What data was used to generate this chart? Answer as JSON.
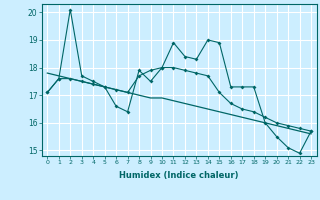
{
  "xlabel": "Humidex (Indice chaleur)",
  "bg_color": "#cceeff",
  "grid_color": "#ffffff",
  "line_color": "#006666",
  "xlim": [
    -0.5,
    23.5
  ],
  "ylim": [
    14.8,
    20.3
  ],
  "xticks": [
    0,
    1,
    2,
    3,
    4,
    5,
    6,
    7,
    8,
    9,
    10,
    11,
    12,
    13,
    14,
    15,
    16,
    17,
    18,
    19,
    20,
    21,
    22,
    23
  ],
  "yticks": [
    15,
    16,
    17,
    18,
    19,
    20
  ],
  "series1": [
    17.1,
    17.6,
    20.1,
    17.7,
    17.5,
    17.3,
    16.6,
    16.4,
    17.9,
    17.5,
    18.0,
    18.9,
    18.4,
    18.3,
    19.0,
    18.9,
    17.3,
    17.3,
    17.3,
    16.0,
    15.5,
    15.1,
    14.9,
    15.7
  ],
  "series2": [
    17.8,
    17.7,
    17.6,
    17.5,
    17.4,
    17.3,
    17.2,
    17.1,
    17.0,
    16.9,
    16.9,
    16.8,
    16.7,
    16.6,
    16.5,
    16.4,
    16.3,
    16.2,
    16.1,
    16.0,
    15.9,
    15.8,
    15.7,
    15.6
  ],
  "series3": [
    17.1,
    17.6,
    17.6,
    17.5,
    17.4,
    17.3,
    17.2,
    17.1,
    17.7,
    17.9,
    18.0,
    18.0,
    17.9,
    17.8,
    17.7,
    17.1,
    16.7,
    16.5,
    16.4,
    16.2,
    16.0,
    15.9,
    15.8,
    15.7
  ]
}
